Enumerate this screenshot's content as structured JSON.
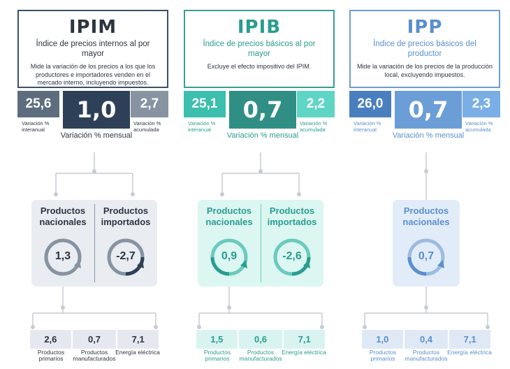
{
  "indices": [
    {
      "abbr": "IPIM",
      "full_name": "Índice de precios internos al por mayor",
      "description": "Mide la variación de los precios a los que los productores e importadores venden en el mercado interno, incluyendo impuestos.",
      "interanual": "25,6",
      "interanual_label": "Variación % interanual",
      "mensual": "1,0",
      "mensual_label": "Variación % mensual",
      "acumulada": "2,7",
      "acumulada_label": "Variación % acumulada",
      "panels": [
        {
          "title": "Productos nacionales",
          "value": "1,3",
          "fraction": 0.013
        },
        {
          "title": "Productos importados",
          "value": "-2,7",
          "fraction": -0.027
        }
      ],
      "breakdown": [
        {
          "value": "2,6",
          "label": "Productos primarios"
        },
        {
          "value": "0,7",
          "label": "Productos manufacturados"
        },
        {
          "value": "7,1",
          "label": "Energía eléctrica"
        }
      ],
      "colors": {
        "accent": "#3c5068",
        "text": "#2d3440",
        "side": "#5d6d7e",
        "light": "#e5e9ef",
        "panel": "#e9edf2",
        "strip": "#e5e9ef",
        "muted": "#8793a1"
      }
    },
    {
      "abbr": "IPIB",
      "full_name": "Índice de precios básicos al por mayor",
      "description": "Excluye el efecto impositivo del IPIM.",
      "interanual": "25,1",
      "interanual_label": "Variación % interanual",
      "mensual": "0,7",
      "mensual_label": "Variación % mensual",
      "acumulada": "2,2",
      "acumulada_label": "Variación % acumulada",
      "panels": [
        {
          "title": "Productos nacionales",
          "value": "0,9",
          "fraction": 0.009
        },
        {
          "title": "Productos importados",
          "value": "-2,6",
          "fraction": -0.026
        }
      ],
      "breakdown": [
        {
          "value": "1,5",
          "label": "Productos primarios"
        },
        {
          "value": "0,6",
          "label": "Productos manufacturados"
        },
        {
          "value": "7,1",
          "label": "Energía eléctrica"
        }
      ],
      "colors": {
        "accent": "#3a9e95",
        "text": "#2a9d8f",
        "side": "#3cbfae",
        "light": "#5fd5c6",
        "panel": "#dcf6f2",
        "strip": "#d9f4f0",
        "muted": "#6cc9bd"
      }
    },
    {
      "abbr": "IPP",
      "full_name": "Índice de precios básicos del productor",
      "description": "Mide la variación de los precios de la producción local, excluyendo impuestos.",
      "interanual": "26,0",
      "interanual_label": "Variación % interanual",
      "mensual": "0,7",
      "mensual_label": "Variación % mensual",
      "acumulada": "2,3",
      "acumulada_label": "Variación % acumulada",
      "panels": [
        {
          "title": "Productos nacionales",
          "value": "0,7",
          "fraction": 0.007
        }
      ],
      "breakdown": [
        {
          "value": "1,0",
          "label": "Productos primarios"
        },
        {
          "value": "0,4",
          "label": "Productos manufacturados"
        },
        {
          "value": "7,1",
          "label": "Energía eléctrica"
        }
      ],
      "colors": {
        "accent": "#6b9ed6",
        "text": "#5a8fcc",
        "side": "#4a7fbf",
        "light": "#7aaee6",
        "panel": "#e2ecf8",
        "strip": "#dfe9f6",
        "muted": "#9dbbe0"
      }
    }
  ]
}
